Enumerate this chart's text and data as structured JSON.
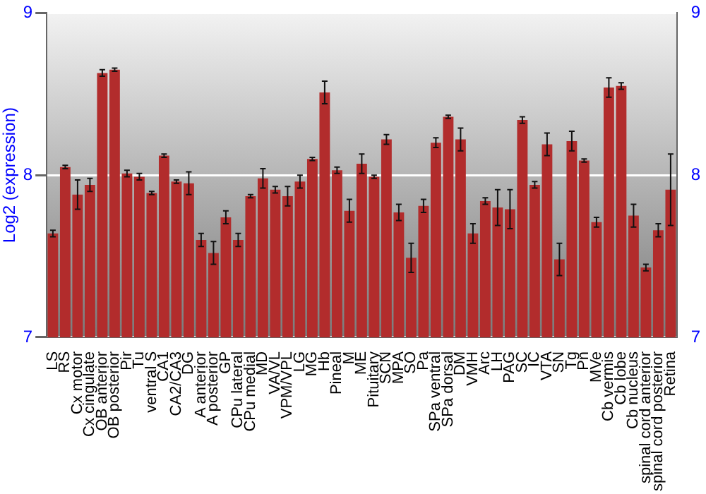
{
  "chart_data": {
    "type": "bar",
    "ylabel": "Log2 (expression)",
    "categories": [
      "LS",
      "RS",
      "Cx motor",
      "Cx cingulate",
      "OB anterior",
      "OB posterior",
      "Pir",
      "Tu",
      "ventral S",
      "CA1",
      "CA2/CA3",
      "DG",
      "A anterior",
      "A posterior",
      "GP",
      "CPu lateral",
      "CPu medial",
      "MD",
      "VA/VL",
      "VPM/VPL",
      "LG",
      "MG",
      "Hb",
      "Pineal",
      "M",
      "ME",
      "Pituitary",
      "SCN",
      "MPA",
      "SO",
      "Pa",
      "SPa ventral",
      "SPa dorsal",
      "DM",
      "VMH",
      "Arc",
      "LH",
      "PAG",
      "SC",
      "IC",
      "VTA",
      "SN",
      "Tg",
      "Pn",
      "MVe",
      "Cb vermis",
      "Cb lobe",
      "Cb nucleus",
      "spinal cord anterior",
      "spinal cord posterior",
      "Retina"
    ],
    "values": [
      7.64,
      8.05,
      7.88,
      7.94,
      8.63,
      8.65,
      8.01,
      7.99,
      7.89,
      8.12,
      7.96,
      7.95,
      7.6,
      7.52,
      7.74,
      7.6,
      7.87,
      7.98,
      7.91,
      7.87,
      7.96,
      8.1,
      8.51,
      8.03,
      7.78,
      8.07,
      7.99,
      8.22,
      7.77,
      7.49,
      7.81,
      8.2,
      8.36,
      8.22,
      7.64,
      7.84,
      7.8,
      7.79,
      8.34,
      7.94,
      8.19,
      7.48,
      8.21,
      8.09,
      7.71,
      8.54,
      8.55,
      7.75,
      7.43,
      7.66,
      7.91
    ],
    "errors": [
      0.02,
      0.01,
      0.09,
      0.04,
      0.02,
      0.01,
      0.02,
      0.02,
      0.01,
      0.01,
      0.01,
      0.07,
      0.04,
      0.07,
      0.04,
      0.04,
      0.01,
      0.06,
      0.02,
      0.06,
      0.04,
      0.01,
      0.07,
      0.02,
      0.07,
      0.06,
      0.01,
      0.03,
      0.05,
      0.09,
      0.04,
      0.03,
      0.01,
      0.07,
      0.06,
      0.02,
      0.11,
      0.12,
      0.02,
      0.02,
      0.07,
      0.1,
      0.06,
      0.01,
      0.03,
      0.06,
      0.02,
      0.07,
      0.02,
      0.04,
      0.22
    ],
    "color": "#b22c2c",
    "ylim": [
      7,
      9
    ],
    "yticks": [
      7,
      8,
      9
    ],
    "y2lim": [
      7,
      9
    ],
    "y2ticks": [
      7,
      8,
      9
    ],
    "grid": "y",
    "legend": false
  }
}
